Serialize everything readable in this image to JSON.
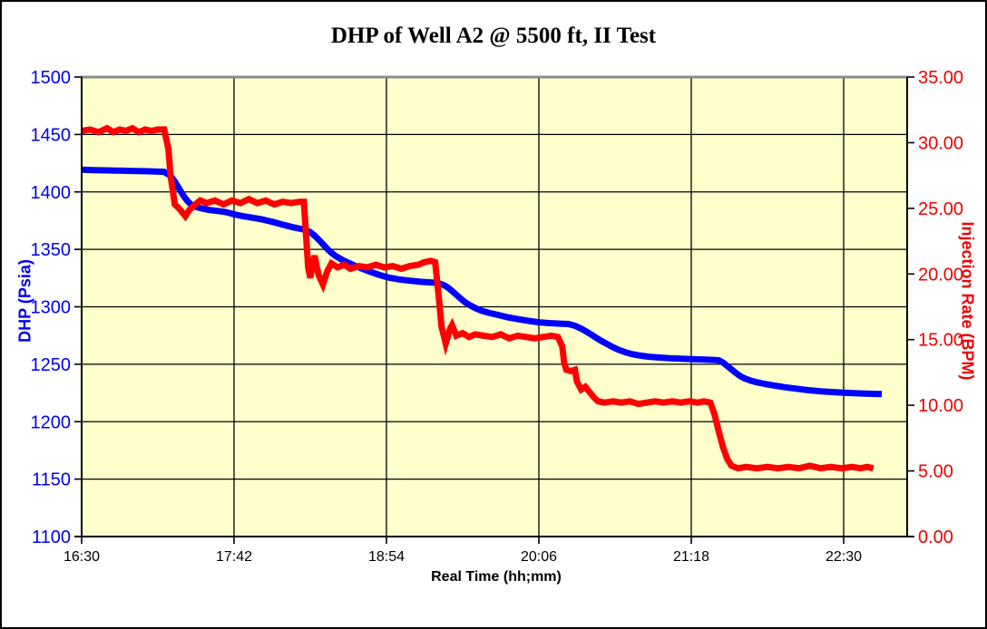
{
  "window": {
    "background": "#FFFFFF",
    "border_color": "#000000"
  },
  "chart_data": {
    "type": "line",
    "title": "DHP of Well A2 @ 5500 ft, II Test",
    "xlabel": "Real Time (hh;mm)",
    "grid": true,
    "legend": "none",
    "plot": {
      "bg": "#FFFFCC",
      "grid_color": "#000000",
      "axis_color": "#000000",
      "top_border_color": "#8C8C8C"
    },
    "x_axis": {
      "domain_minutes": [
        990,
        1380
      ],
      "ticks": [
        {
          "minutes": 990,
          "label": "16:30"
        },
        {
          "minutes": 1062,
          "label": "17:42"
        },
        {
          "minutes": 1134,
          "label": "18:54"
        },
        {
          "minutes": 1206,
          "label": "20:06"
        },
        {
          "minutes": 1278,
          "label": "21:18"
        },
        {
          "minutes": 1350,
          "label": "22:30"
        }
      ]
    },
    "left_axis": {
      "label": "DHP (Psia)",
      "color": "#0000EE",
      "min": 1100,
      "max": 1500,
      "tick_step": 50,
      "ticks": [
        {
          "value": 1500,
          "label": "1500"
        },
        {
          "value": 1450,
          "label": "1450"
        },
        {
          "value": 1400,
          "label": "1400"
        },
        {
          "value": 1350,
          "label": "1350"
        },
        {
          "value": 1300,
          "label": "1300"
        },
        {
          "value": 1250,
          "label": "1250"
        },
        {
          "value": 1200,
          "label": "1200"
        },
        {
          "value": 1150,
          "label": "1150"
        },
        {
          "value": 1100,
          "label": "1100"
        }
      ]
    },
    "right_axis": {
      "label": "Injection Rate (BPM)",
      "color": "#EE0000",
      "min": 0,
      "max": 35,
      "tick_step": 5,
      "ticks": [
        {
          "value": 35,
          "label": "35.00"
        },
        {
          "value": 30,
          "label": "30.00"
        },
        {
          "value": 25,
          "label": "25.00"
        },
        {
          "value": 20,
          "label": "20.00"
        },
        {
          "value": 15,
          "label": "15.00"
        },
        {
          "value": 10,
          "label": "10.00"
        },
        {
          "value": 5,
          "label": "5.00"
        },
        {
          "value": 0,
          "label": "0.00"
        }
      ]
    },
    "series": [
      {
        "name": "DHP (Psia)",
        "axis": "left",
        "color": "#0000FF",
        "stroke_width": 7,
        "points": [
          [
            990,
            1419.3
          ],
          [
            996,
            1419.0
          ],
          [
            1002,
            1418.7
          ],
          [
            1008,
            1418.5
          ],
          [
            1014,
            1418.3
          ],
          [
            1020,
            1418.0
          ],
          [
            1025,
            1417.8
          ],
          [
            1029,
            1417.5
          ],
          [
            1032,
            1414.0
          ],
          [
            1034,
            1409.0
          ],
          [
            1036,
            1403.0
          ],
          [
            1038,
            1397.0
          ],
          [
            1040,
            1392.0
          ],
          [
            1042,
            1388.5
          ],
          [
            1044,
            1387.0
          ],
          [
            1047,
            1385.5
          ],
          [
            1050,
            1384.3
          ],
          [
            1054,
            1383.5
          ],
          [
            1058,
            1382.5
          ],
          [
            1062,
            1380.5
          ],
          [
            1066,
            1379.0
          ],
          [
            1070,
            1377.8
          ],
          [
            1075,
            1376.2
          ],
          [
            1080,
            1374.0
          ],
          [
            1085,
            1371.5
          ],
          [
            1090,
            1369.2
          ],
          [
            1095,
            1367.3
          ],
          [
            1098,
            1365.0
          ],
          [
            1100,
            1362.0
          ],
          [
            1102,
            1358.5
          ],
          [
            1104,
            1354.5
          ],
          [
            1106,
            1350.5
          ],
          [
            1108,
            1347.0
          ],
          [
            1110,
            1344.2
          ],
          [
            1113,
            1341.0
          ],
          [
            1116,
            1338.3
          ],
          [
            1119,
            1335.8
          ],
          [
            1123,
            1332.8
          ],
          [
            1127,
            1330.0
          ],
          [
            1131,
            1327.5
          ],
          [
            1135,
            1325.5
          ],
          [
            1140,
            1323.8
          ],
          [
            1145,
            1322.7
          ],
          [
            1150,
            1321.8
          ],
          [
            1155,
            1321.2
          ],
          [
            1158,
            1320.8
          ],
          [
            1161,
            1319.0
          ],
          [
            1163,
            1316.8
          ],
          [
            1165,
            1313.8
          ],
          [
            1167,
            1310.5
          ],
          [
            1169,
            1307.2
          ],
          [
            1171,
            1304.2
          ],
          [
            1173,
            1301.8
          ],
          [
            1176,
            1298.8
          ],
          [
            1179,
            1296.5
          ],
          [
            1183,
            1294.5
          ],
          [
            1187,
            1292.8
          ],
          [
            1191,
            1291.0
          ],
          [
            1196,
            1289.3
          ],
          [
            1201,
            1287.8
          ],
          [
            1206,
            1286.5
          ],
          [
            1211,
            1285.8
          ],
          [
            1216,
            1285.3
          ],
          [
            1220,
            1285.0
          ],
          [
            1223,
            1283.5
          ],
          [
            1226,
            1281.0
          ],
          [
            1229,
            1277.8
          ],
          [
            1232,
            1274.3
          ],
          [
            1235,
            1270.8
          ],
          [
            1238,
            1267.8
          ],
          [
            1241,
            1264.8
          ],
          [
            1244,
            1262.3
          ],
          [
            1247,
            1260.3
          ],
          [
            1250,
            1258.8
          ],
          [
            1254,
            1257.5
          ],
          [
            1258,
            1256.5
          ],
          [
            1263,
            1255.8
          ],
          [
            1268,
            1255.2
          ],
          [
            1274,
            1254.7
          ],
          [
            1280,
            1254.3
          ],
          [
            1286,
            1253.9
          ],
          [
            1291,
            1253.5
          ],
          [
            1293,
            1251.5
          ],
          [
            1295,
            1248.5
          ],
          [
            1297,
            1245.5
          ],
          [
            1299,
            1242.5
          ],
          [
            1301,
            1239.8
          ],
          [
            1303,
            1237.8
          ],
          [
            1306,
            1235.8
          ],
          [
            1309,
            1234.3
          ],
          [
            1313,
            1232.8
          ],
          [
            1317,
            1231.5
          ],
          [
            1322,
            1230.0
          ],
          [
            1327,
            1228.8
          ],
          [
            1333,
            1227.5
          ],
          [
            1339,
            1226.5
          ],
          [
            1346,
            1225.7
          ],
          [
            1353,
            1225.0
          ],
          [
            1360,
            1224.5
          ],
          [
            1365,
            1224.2
          ],
          [
            1368,
            1224.0
          ]
        ]
      },
      {
        "name": "Injection Rate (BPM)",
        "axis": "right",
        "color": "#FF0000",
        "stroke_width": 7,
        "points": [
          [
            990,
            30.9
          ],
          [
            994,
            31.0
          ],
          [
            998,
            30.8
          ],
          [
            1002,
            31.1
          ],
          [
            1005,
            30.8
          ],
          [
            1008,
            31.0
          ],
          [
            1011,
            30.9
          ],
          [
            1014,
            31.1
          ],
          [
            1017,
            30.8
          ],
          [
            1020,
            31.0
          ],
          [
            1023,
            30.9
          ],
          [
            1026,
            31.0
          ],
          [
            1029,
            31.0
          ],
          [
            1031,
            29.5
          ],
          [
            1032,
            27.5
          ],
          [
            1034,
            25.3
          ],
          [
            1036,
            25.0
          ],
          [
            1039,
            24.4
          ],
          [
            1041,
            24.9
          ],
          [
            1043,
            25.2
          ],
          [
            1046,
            25.6
          ],
          [
            1049,
            25.4
          ],
          [
            1053,
            25.6
          ],
          [
            1057,
            25.3
          ],
          [
            1061,
            25.6
          ],
          [
            1065,
            25.4
          ],
          [
            1069,
            25.7
          ],
          [
            1073,
            25.4
          ],
          [
            1077,
            25.6
          ],
          [
            1081,
            25.3
          ],
          [
            1085,
            25.5
          ],
          [
            1089,
            25.4
          ],
          [
            1093,
            25.5
          ],
          [
            1095,
            25.5
          ],
          [
            1096,
            23.0
          ],
          [
            1097,
            20.5
          ],
          [
            1098,
            19.7
          ],
          [
            1100,
            21.4
          ],
          [
            1101,
            20.6
          ],
          [
            1102,
            19.9
          ],
          [
            1104,
            19.2
          ],
          [
            1106,
            20.2
          ],
          [
            1108,
            20.8
          ],
          [
            1111,
            20.5
          ],
          [
            1114,
            20.7
          ],
          [
            1117,
            20.4
          ],
          [
            1121,
            20.6
          ],
          [
            1125,
            20.5
          ],
          [
            1129,
            20.7
          ],
          [
            1133,
            20.5
          ],
          [
            1137,
            20.6
          ],
          [
            1141,
            20.4
          ],
          [
            1145,
            20.6
          ],
          [
            1149,
            20.7
          ],
          [
            1152,
            20.9
          ],
          [
            1155,
            21.0
          ],
          [
            1157,
            20.9
          ],
          [
            1159,
            17.8
          ],
          [
            1160,
            16.0
          ],
          [
            1162,
            14.7
          ],
          [
            1164,
            15.8
          ],
          [
            1165,
            16.1
          ],
          [
            1167,
            15.3
          ],
          [
            1170,
            15.5
          ],
          [
            1173,
            15.2
          ],
          [
            1176,
            15.4
          ],
          [
            1180,
            15.3
          ],
          [
            1184,
            15.2
          ],
          [
            1188,
            15.4
          ],
          [
            1192,
            15.1
          ],
          [
            1196,
            15.3
          ],
          [
            1200,
            15.2
          ],
          [
            1204,
            15.1
          ],
          [
            1208,
            15.2
          ],
          [
            1212,
            15.3
          ],
          [
            1215,
            15.2
          ],
          [
            1217,
            14.5
          ],
          [
            1218,
            13.2
          ],
          [
            1219,
            12.7
          ],
          [
            1221,
            12.6
          ],
          [
            1223,
            12.7
          ],
          [
            1224,
            11.8
          ],
          [
            1226,
            11.2
          ],
          [
            1228,
            11.4
          ],
          [
            1230,
            11.0
          ],
          [
            1232,
            10.6
          ],
          [
            1234,
            10.3
          ],
          [
            1237,
            10.2
          ],
          [
            1241,
            10.3
          ],
          [
            1245,
            10.2
          ],
          [
            1249,
            10.3
          ],
          [
            1253,
            10.1
          ],
          [
            1257,
            10.2
          ],
          [
            1261,
            10.3
          ],
          [
            1265,
            10.2
          ],
          [
            1269,
            10.3
          ],
          [
            1273,
            10.2
          ],
          [
            1277,
            10.3
          ],
          [
            1281,
            10.2
          ],
          [
            1284,
            10.3
          ],
          [
            1287,
            10.2
          ],
          [
            1289,
            9.3
          ],
          [
            1291,
            8.0
          ],
          [
            1293,
            6.8
          ],
          [
            1295,
            5.9
          ],
          [
            1297,
            5.4
          ],
          [
            1300,
            5.2
          ],
          [
            1304,
            5.3
          ],
          [
            1309,
            5.2
          ],
          [
            1314,
            5.3
          ],
          [
            1319,
            5.2
          ],
          [
            1324,
            5.3
          ],
          [
            1329,
            5.2
          ],
          [
            1334,
            5.4
          ],
          [
            1339,
            5.2
          ],
          [
            1344,
            5.3
          ],
          [
            1349,
            5.2
          ],
          [
            1354,
            5.3
          ],
          [
            1358,
            5.2
          ],
          [
            1361,
            5.3
          ],
          [
            1364,
            5.2
          ]
        ]
      }
    ]
  }
}
